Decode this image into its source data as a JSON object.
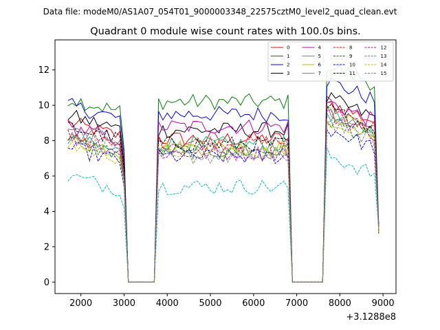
{
  "figure": {
    "suptitle": "Data file: modeM0/AS1A07_054T01_9000003348_22575cztM0_level2_quad_clean.evt",
    "title": "Quadrant 0 module wise count rates with 100.0s bins."
  },
  "chart_data": {
    "type": "line",
    "title": "Quadrant 0 module wise count rates with 100.0s bins.",
    "xlabel": "",
    "ylabel": "",
    "x_offset_label": "+3.1288e8",
    "xlim": [
      1400,
      9300
    ],
    "ylim": [
      -0.65,
      13.7
    ],
    "xticks": [
      2000,
      3000,
      4000,
      5000,
      6000,
      7000,
      8000,
      9000
    ],
    "yticks": [
      0,
      2,
      4,
      6,
      8,
      10,
      12
    ],
    "grid": false,
    "legend": {
      "placement": "top-right",
      "columns": 4
    },
    "segments": [
      {
        "x_start": 1700,
        "x_end": 3000
      },
      {
        "x_start": 3800,
        "x_end": 6800
      },
      {
        "x_start": 7700,
        "x_end": 8900
      }
    ],
    "gap_x": [
      3100,
      3200,
      3300,
      3400,
      3500,
      3600,
      3700,
      6900,
      7000,
      7100,
      7200,
      7300,
      7400,
      7500,
      7600
    ],
    "series": [
      {
        "name": "0",
        "color": "#ff0000",
        "dashed": false,
        "levels": [
          8.6,
          8.1,
          9.6
        ]
      },
      {
        "name": "1",
        "color": "#008000",
        "dashed": false,
        "levels": [
          10.0,
          10.2,
          11.7
        ]
      },
      {
        "name": "2",
        "color": "#0000ff",
        "dashed": false,
        "levels": [
          9.6,
          9.5,
          10.8
        ]
      },
      {
        "name": "3",
        "color": "#000000",
        "dashed": false,
        "levels": [
          9.0,
          8.6,
          9.8
        ]
      },
      {
        "name": "4",
        "color": "#bf00bf",
        "dashed": false,
        "levels": [
          8.4,
          8.8,
          9.6
        ]
      },
      {
        "name": "5",
        "color": "#00bf7f",
        "dashed": false,
        "levels": [
          7.7,
          7.8,
          9.0
        ]
      },
      {
        "name": "6",
        "color": "#bfbf00",
        "dashed": false,
        "levels": [
          7.7,
          7.6,
          9.0
        ]
      },
      {
        "name": "7",
        "color": "#808080",
        "dashed": false,
        "levels": [
          8.3,
          7.4,
          9.0
        ]
      },
      {
        "name": "8",
        "color": "#ff0000",
        "dashed": true,
        "levels": [
          8.0,
          7.9,
          9.3
        ]
      },
      {
        "name": "9",
        "color": "#008000",
        "dashed": true,
        "levels": [
          7.6,
          7.4,
          8.6
        ]
      },
      {
        "name": "10",
        "color": "#0000ff",
        "dashed": true,
        "levels": [
          7.2,
          7.1,
          8.1
        ]
      },
      {
        "name": "11",
        "color": "#000000",
        "dashed": true,
        "levels": [
          8.4,
          7.8,
          9.2
        ]
      },
      {
        "name": "12",
        "color": "#bf00bf",
        "dashed": true,
        "levels": [
          7.8,
          7.3,
          8.9
        ]
      },
      {
        "name": "13",
        "color": "#00bfbf",
        "dashed": true,
        "levels": [
          5.6,
          5.4,
          6.6
        ]
      },
      {
        "name": "14",
        "color": "#bfbf00",
        "dashed": true,
        "levels": [
          7.4,
          7.4,
          8.7
        ]
      },
      {
        "name": "15",
        "color": "#808080",
        "dashed": true,
        "levels": [
          8.0,
          7.1,
          8.5
        ]
      }
    ]
  }
}
